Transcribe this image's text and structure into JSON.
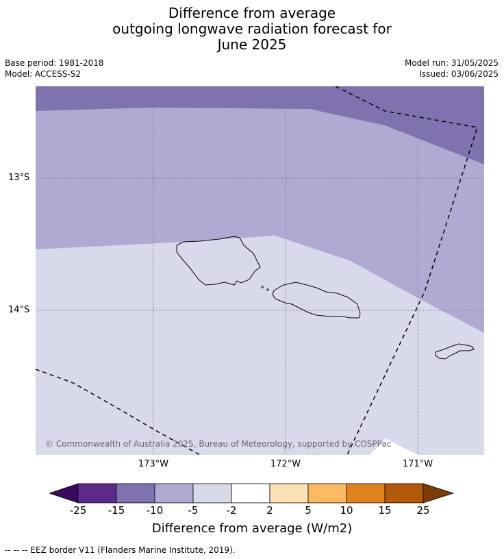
{
  "title_lines": [
    "Difference from average",
    "outgoing longwave radiation forecast for",
    "June 2025"
  ],
  "meta_left": [
    "Base period: 1981-2018",
    "Model: ACCESS-S2"
  ],
  "meta_right": [
    "Model run: 31/05/2025",
    "Issued: 03/06/2025"
  ],
  "map": {
    "lat_labels": [
      "13°S",
      "14°S"
    ],
    "lon_labels": [
      "173°W",
      "172°W",
      "171°W"
    ],
    "copyright": "© Commonwealth of Australia 2025, Bureau of Meteorology, supported by COSPPac",
    "colors": {
      "band_-15_-10": "#7f72ae",
      "band_-10_-5": "#b0aad3",
      "band_-5_-2": "#d9d9ec",
      "band_-2_2": "#ffffff"
    }
  },
  "colorbar": {
    "ticks": [
      "-25",
      "-15",
      "-10",
      "-5",
      "-2",
      "2",
      "5",
      "10",
      "15",
      "25"
    ],
    "colors": [
      "#380a5f",
      "#5b2b8c",
      "#7f72ae",
      "#b0aad3",
      "#d9d9ec",
      "#ffffff",
      "#fee0b5",
      "#fdb862",
      "#e0821c",
      "#b35806",
      "#7f3b08"
    ],
    "label": "Difference from average (W/m2)"
  },
  "footnote": "--  --  -- EEZ border V11 (Flanders Marine Institute, 2019)."
}
